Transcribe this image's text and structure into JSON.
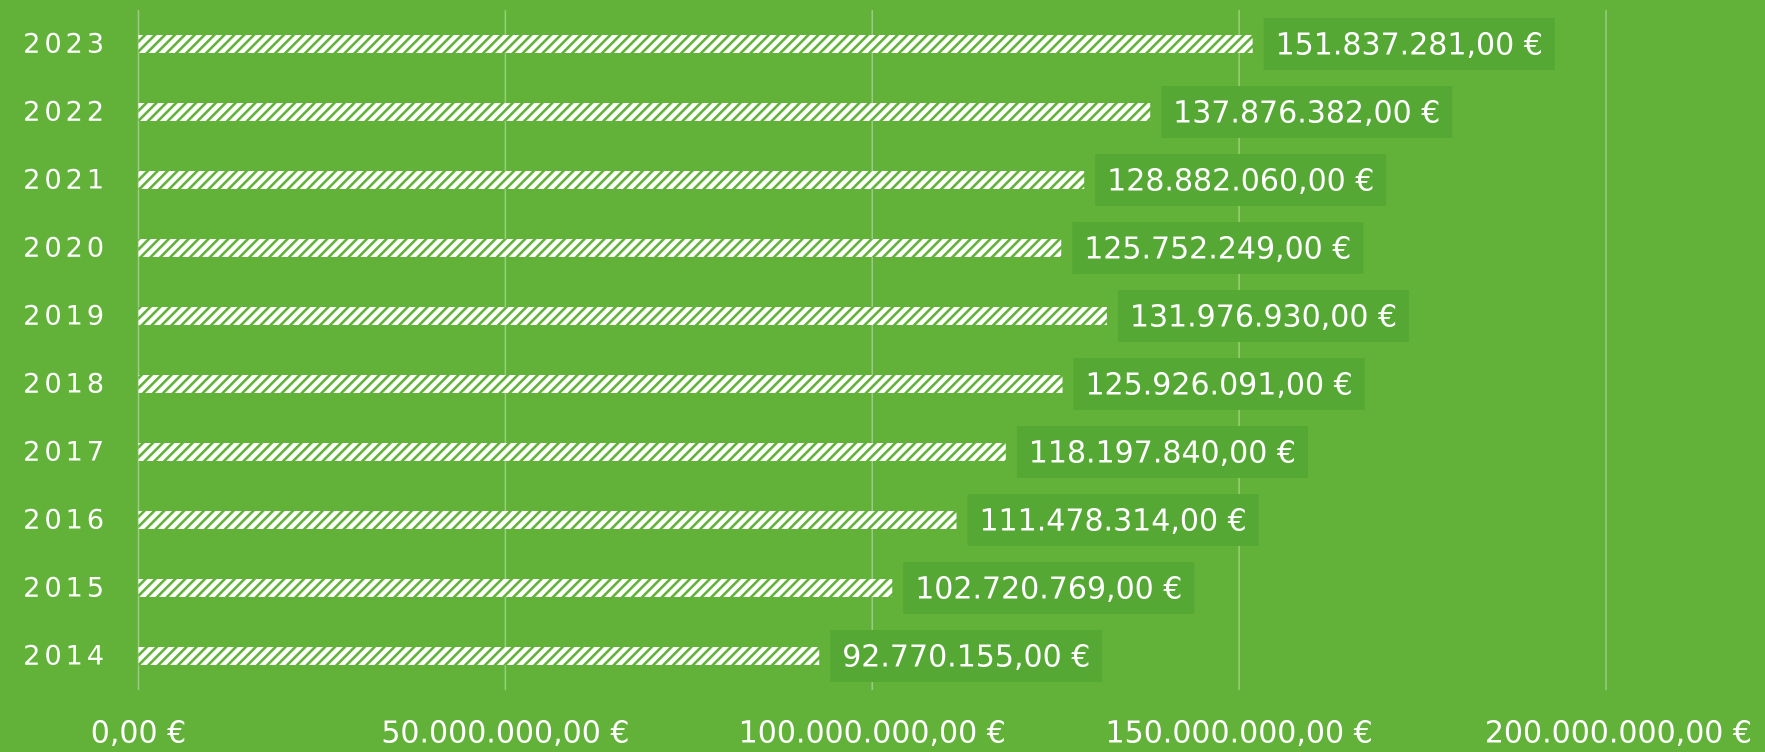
{
  "chart_data": {
    "type": "bar",
    "orientation": "horizontal",
    "categories": [
      "2023",
      "2022",
      "2021",
      "2020",
      "2019",
      "2018",
      "2017",
      "2016",
      "2015",
      "2014"
    ],
    "values": [
      151837281,
      137876382,
      128882060,
      125752249,
      131976930,
      125926091,
      118197840,
      111478314,
      102720769,
      92770155
    ],
    "value_labels": [
      "151.837.281,00 €",
      "137.876.382,00 €",
      "128.882.060,00 €",
      "125.752.249,00 €",
      "131.976.930,00 €",
      "125.926.091,00 €",
      "118.197.840,00 €",
      "111.478.314,00 €",
      "102.720.769,00 €",
      "92.770.155,00 €"
    ],
    "color": "#ffffff",
    "xlim": [
      0,
      200000000
    ],
    "xticks": [
      {
        "value": 0,
        "label": "0,00 €"
      },
      {
        "value": 50000000,
        "label": "50.000.000,00 €"
      },
      {
        "value": 100000000,
        "label": "100.000.000,00 €"
      },
      {
        "value": 150000000,
        "label": "150.000.000,00 €"
      },
      {
        "value": 200000000,
        "label": "200.000.000,00 €"
      }
    ],
    "grid": true
  }
}
